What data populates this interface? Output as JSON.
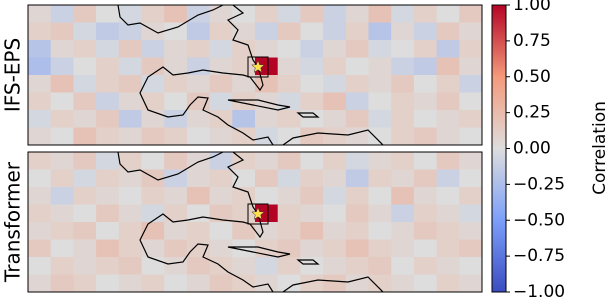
{
  "chart_data": [
    {
      "type": "heatmap",
      "ylabel": "IFS-EPS",
      "cmap": "coolwarm",
      "z": [
        [
          0.05,
          -0.1,
          0.15,
          0.0,
          -0.05,
          0.1,
          0.2,
          -0.1,
          0.05,
          0.0,
          0.1,
          -0.05,
          0.15,
          -0.1,
          0.05,
          0.2,
          -0.05,
          0.1,
          0.0,
          0.15
        ],
        [
          0.1,
          0.15,
          -0.05,
          -0.15,
          -0.1,
          0.05,
          0.0,
          -0.15,
          0.1,
          0.05,
          -0.1,
          0.15,
          0.0,
          -0.1,
          0.1,
          -0.2,
          0.05,
          -0.1,
          0.15,
          0.05
        ],
        [
          -0.2,
          0.05,
          0.1,
          -0.05,
          0.15,
          -0.1,
          0.05,
          0.1,
          -0.05,
          0.1,
          0.05,
          0.0,
          -0.1,
          0.05,
          0.15,
          -0.05,
          0.0,
          0.1,
          -0.15,
          0.1
        ],
        [
          -0.25,
          -0.1,
          0.0,
          0.1,
          -0.05,
          0.15,
          0.05,
          -0.1,
          0.05,
          0.1,
          1.0,
          0.05,
          -0.05,
          0.1,
          0.0,
          0.05,
          -0.1,
          -0.15,
          0.2,
          0.05
        ],
        [
          0.05,
          0.2,
          -0.05,
          0.1,
          0.15,
          -0.05,
          0.1,
          0.05,
          0.15,
          0.05,
          0.2,
          0.1,
          0.0,
          -0.05,
          0.1,
          0.05,
          0.15,
          0.0,
          0.1,
          -0.1
        ],
        [
          0.1,
          0.0,
          0.15,
          -0.1,
          0.05,
          0.1,
          0.0,
          0.15,
          -0.05,
          0.1,
          0.05,
          -0.05,
          0.1,
          0.2,
          -0.1,
          0.0,
          0.1,
          0.05,
          0.15,
          0.0
        ],
        [
          -0.05,
          0.1,
          0.05,
          0.15,
          -0.15,
          0.05,
          -0.1,
          0.05,
          0.1,
          -0.2,
          0.05,
          0.1,
          0.0,
          0.05,
          0.15,
          -0.05,
          0.1,
          0.0,
          0.05,
          0.1
        ],
        [
          0.05,
          0.0,
          0.2,
          0.1,
          0.05,
          0.15,
          0.1,
          0.0,
          0.05,
          0.1,
          -0.05,
          0.0,
          0.15,
          0.1,
          0.05,
          0.0,
          0.1,
          0.15,
          0.05,
          0.0
        ]
      ]
    },
    {
      "type": "heatmap",
      "ylabel": "Transformer",
      "cmap": "coolwarm",
      "z": [
        [
          0.1,
          0.05,
          0.15,
          -0.05,
          0.1,
          0.0,
          0.15,
          0.05,
          -0.1,
          0.1,
          0.05,
          0.15,
          0.0,
          0.1,
          -0.05,
          0.05,
          0.1,
          0.0,
          0.15,
          0.05
        ],
        [
          0.0,
          0.1,
          -0.05,
          0.1,
          0.05,
          0.15,
          -0.1,
          0.05,
          0.1,
          0.0,
          0.15,
          -0.05,
          0.1,
          0.05,
          -0.15,
          0.1,
          0.05,
          0.15,
          -0.1,
          0.0
        ],
        [
          0.05,
          -0.1,
          0.1,
          0.05,
          0.0,
          0.1,
          0.05,
          0.2,
          0.05,
          0.1,
          0.0,
          0.05,
          0.15,
          -0.05,
          0.1,
          0.0,
          0.2,
          0.05,
          0.0,
          0.1
        ],
        [
          0.1,
          0.05,
          0.0,
          0.15,
          0.05,
          -0.05,
          0.1,
          0.0,
          0.15,
          0.1,
          1.0,
          0.1,
          0.05,
          0.0,
          0.15,
          0.05,
          -0.1,
          0.1,
          0.05,
          -0.05
        ],
        [
          0.05,
          0.1,
          0.15,
          0.0,
          0.1,
          0.2,
          0.05,
          0.1,
          0.0,
          0.15,
          0.05,
          0.1,
          0.2,
          0.05,
          0.1,
          0.0,
          0.05,
          0.15,
          0.1,
          0.05
        ],
        [
          0.15,
          0.0,
          0.05,
          0.2,
          0.1,
          0.05,
          0.15,
          0.1,
          0.05,
          0.0,
          0.1,
          0.15,
          0.05,
          0.1,
          0.2,
          0.1,
          0.05,
          0.0,
          0.1,
          0.15
        ],
        [
          0.0,
          0.1,
          0.05,
          0.1,
          0.15,
          0.0,
          0.05,
          0.15,
          0.1,
          0.05,
          -0.05,
          0.1,
          0.0,
          0.05,
          0.1,
          0.15,
          0.0,
          0.1,
          0.05,
          0.0
        ],
        [
          0.05,
          0.15,
          0.1,
          0.0,
          0.05,
          0.1,
          0.0,
          0.05,
          0.15,
          0.1,
          0.05,
          0.0,
          0.1,
          0.15,
          0.05,
          0.1,
          0.05,
          0.0,
          0.1,
          0.05
        ]
      ]
    }
  ],
  "colorbar": {
    "label": "Correlation",
    "lim": [
      -1,
      1
    ],
    "ticks": [
      {
        "value": 1,
        "label": "1.00"
      },
      {
        "value": 0.75,
        "label": "0.75"
      },
      {
        "value": 0.5,
        "label": "0.50"
      },
      {
        "value": 0.25,
        "label": "0.25"
      },
      {
        "value": 0,
        "label": "0.00"
      },
      {
        "value": -0.25,
        "label": "−0.25"
      },
      {
        "value": -0.5,
        "label": "−0.50"
      },
      {
        "value": -0.75,
        "label": "−0.75"
      },
      {
        "value": -1,
        "label": "−1.00"
      }
    ]
  }
}
